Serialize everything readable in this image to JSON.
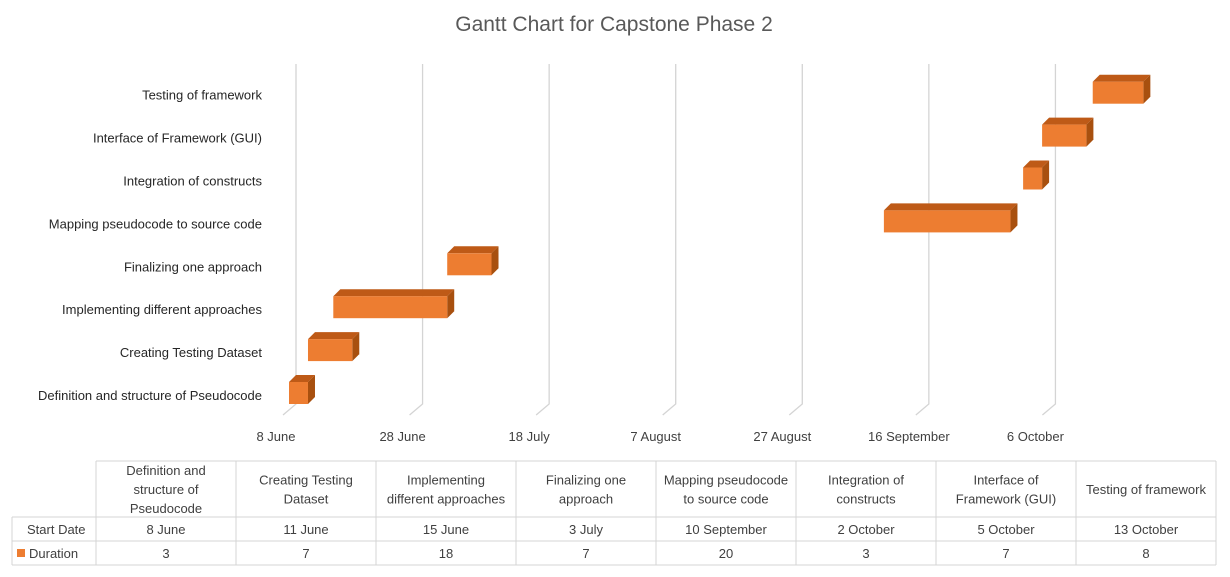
{
  "chart_data": {
    "type": "bar",
    "orientation": "horizontal",
    "stacked": true,
    "three_d": true,
    "title": "Gantt Chart for Capstone Phase 2",
    "categories": [
      "Definition and structure of Pseudocode",
      "Creating Testing Dataset",
      "Implementing different approaches",
      "Finalizing one approach",
      "Mapping pseudocode to source code",
      "Integration of constructs",
      "Interface of Framework (GUI)",
      "Testing of framework"
    ],
    "table_categories": [
      [
        "Definition and",
        "structure of",
        "Pseudocode"
      ],
      [
        "Creating Testing",
        "Dataset"
      ],
      [
        "Implementing",
        "different approaches"
      ],
      [
        "Finalizing one",
        "approach"
      ],
      [
        "Mapping pseudocode",
        "to source code"
      ],
      [
        "Integration of",
        "constructs"
      ],
      [
        "Interface of",
        "Framework (GUI)"
      ],
      [
        "Testing of framework"
      ]
    ],
    "series": [
      {
        "name": "Start Date",
        "visible": false,
        "labels": [
          "8 June",
          "11 June",
          "15 June",
          "3 July",
          "10 September",
          "2 October",
          "5 October",
          "13 October"
        ],
        "values": [
          "2023-06-08",
          "2023-06-11",
          "2023-06-15",
          "2023-07-03",
          "2023-09-10",
          "2023-10-02",
          "2023-10-05",
          "2023-10-13"
        ]
      },
      {
        "name": "Duration",
        "color": "#ED7D31",
        "values": [
          3,
          7,
          18,
          7,
          20,
          3,
          7,
          8
        ]
      }
    ],
    "x_ticks": [
      "8 June",
      "28 June",
      "18 July",
      "7 August",
      "27 August",
      "16 September",
      "6 October"
    ],
    "x_tick_values": [
      "2023-06-08",
      "2023-06-28",
      "2023-07-18",
      "2023-08-07",
      "2023-08-27",
      "2023-09-16",
      "2023-10-06"
    ],
    "xlim": [
      "2023-06-08",
      "2023-10-26"
    ],
    "grid": true,
    "legend": "data-table"
  }
}
